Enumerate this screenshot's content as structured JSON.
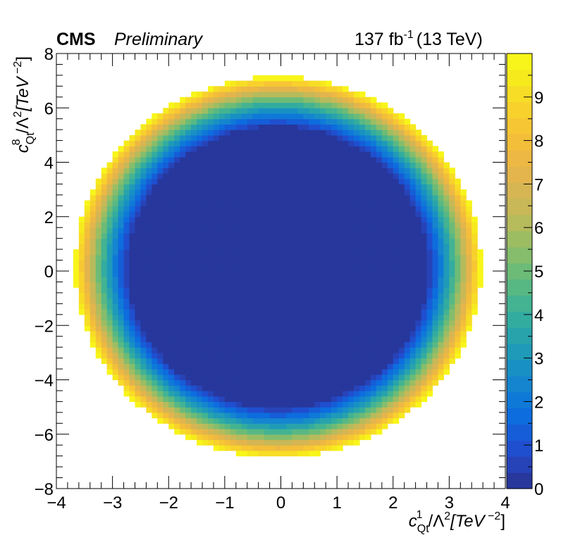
{
  "header": {
    "experiment": "CMS",
    "status": "Preliminary",
    "lumi_value": "137 fb",
    "lumi_exp": "-1",
    "energy": "(13 TeV)"
  },
  "chart_data": {
    "type": "heatmap",
    "title": "",
    "x_axis": {
      "label_parts": [
        "c",
        "Qt",
        "1",
        "/Λ",
        "2",
        "[TeV",
        " −2",
        "]"
      ],
      "range": [
        -4,
        4
      ],
      "tick_labels": [
        "−4",
        "−3",
        "−2",
        "−1",
        "0",
        "1",
        "2",
        "3",
        "4"
      ]
    },
    "y_axis": {
      "label_parts": [
        "c",
        "Qt",
        "8",
        "/Λ",
        "2",
        "[TeV",
        " −2",
        "]"
      ],
      "range": [
        -8,
        8
      ],
      "tick_labels": [
        "−8",
        "−6",
        "−4",
        "−2",
        "0",
        "2",
        "4",
        "6",
        "8"
      ]
    },
    "z_axis": {
      "range": [
        0,
        10
      ],
      "tick_labels": [
        "0",
        "1",
        "2",
        "3",
        "4",
        "5",
        "6",
        "7",
        "8",
        "9"
      ]
    },
    "grid": false,
    "shape": "annular likelihood ring: values below 0.5 inside x²/3.55²+y²/6.8²≈0.55, rising to 10 at the outer edge x²/3.62²+y²/7.0²=1",
    "center": {
      "x": -0.05,
      "y": 0.15
    },
    "outer_edge": {
      "x_radius": 3.62,
      "y_radius": 7.0
    },
    "inner_plateau_fraction": 0.55,
    "bins": {
      "x": 80,
      "y": 80
    },
    "palette": [
      "#27379c",
      "#2743b8",
      "#1f4fcf",
      "#155ed8",
      "#0d6cde",
      "#0f79d8",
      "#1585cf",
      "#1890c4",
      "#1f9ab8",
      "#28a3ac",
      "#33aca0",
      "#43b392",
      "#58b884",
      "#6cbb77",
      "#85bd6c",
      "#9dbd63",
      "#b6bb5c",
      "#c8b857",
      "#d6b553",
      "#e3b54c",
      "#edb843",
      "#f3be3a",
      "#f7c634",
      "#f8d12d",
      "#f7dd25",
      "#f6ea1d",
      "#f8f51a"
    ]
  }
}
